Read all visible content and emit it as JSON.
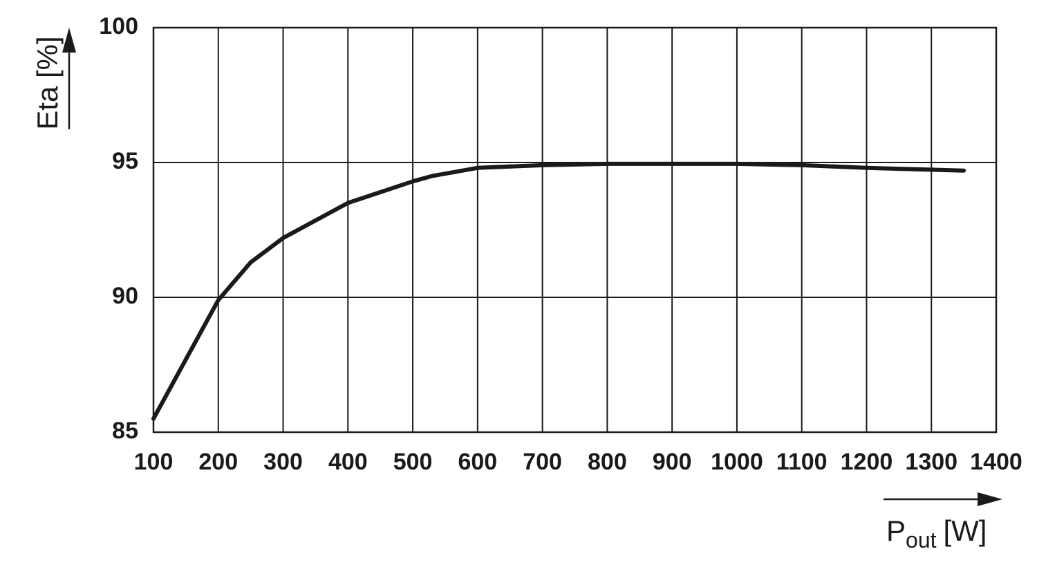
{
  "chart_data": {
    "type": "line",
    "y_label": "Eta [%]",
    "x_label": {
      "main": "P",
      "sub": "out",
      "unit": "[W]"
    },
    "x": [
      100,
      150,
      200,
      250,
      300,
      400,
      500,
      530,
      600,
      700,
      800,
      900,
      1000,
      1100,
      1200,
      1350
    ],
    "values": [
      85.5,
      87.7,
      89.9,
      91.3,
      92.2,
      93.5,
      94.3,
      94.5,
      94.8,
      94.9,
      94.95,
      94.95,
      94.95,
      94.9,
      94.8,
      94.7
    ],
    "color": "#1a1a1a",
    "xlim": [
      100,
      1400
    ],
    "xticks": [
      100,
      200,
      300,
      400,
      500,
      600,
      700,
      800,
      900,
      1000,
      1100,
      1200,
      1300,
      1400
    ],
    "ylim": [
      85,
      100
    ],
    "yticks": [
      85,
      90,
      95,
      100
    ],
    "grid": true
  }
}
